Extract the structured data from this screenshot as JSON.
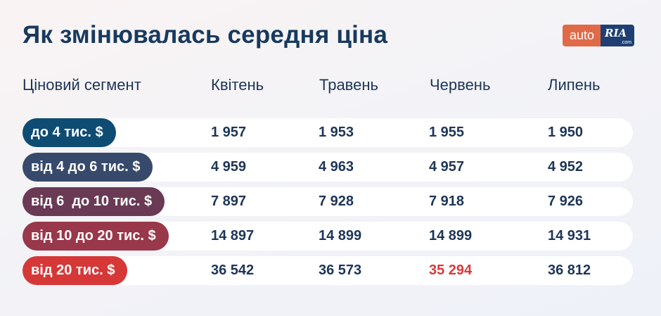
{
  "title": "Як змінювалась середня ціна",
  "logo": {
    "auto": "auto",
    "ria": "RIA",
    "com": ".com"
  },
  "colors": {
    "seg1": "#0f4c73",
    "seg2": "#374a6b",
    "seg3": "#6a3a55",
    "seg4": "#98384a",
    "seg5": "#d63838",
    "highlight": "#d83a3a"
  },
  "headers": [
    "Ціновий сегмент",
    "Квітень",
    "Травень",
    "Червень",
    "Липень"
  ],
  "rows": [
    {
      "segment": "до 4 тис. $",
      "values": [
        "1 957",
        "1 953",
        "1 955",
        "1 950"
      ]
    },
    {
      "segment": "від 4 до 6 тис. $",
      "values": [
        "4 959",
        "4 963",
        "4 957",
        "4 952"
      ]
    },
    {
      "segment": "від 6  до 10 тис. $",
      "values": [
        "7 897",
        "7 928",
        "7 918",
        "7 926"
      ]
    },
    {
      "segment": "від 10 до 20 тис. $",
      "values": [
        "14 897",
        "14 899",
        "14 899",
        "14 931"
      ]
    },
    {
      "segment": "від 20 тис. $",
      "values": [
        "36 542",
        "36 573",
        "35 294",
        "36 812"
      ]
    }
  ]
}
